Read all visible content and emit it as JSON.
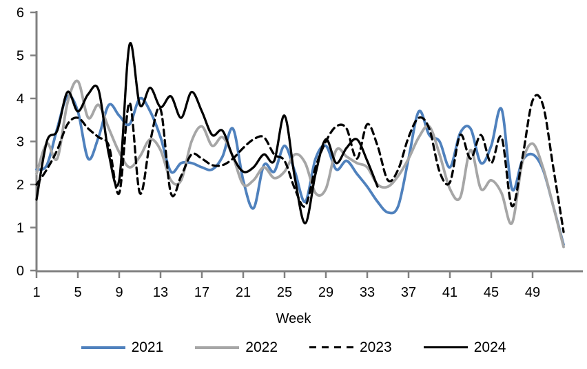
{
  "chart_data": {
    "type": "line",
    "title": "",
    "xlabel": "Week",
    "ylabel": "",
    "x_ticks": [
      1,
      5,
      9,
      13,
      17,
      21,
      25,
      29,
      33,
      37,
      41,
      45,
      49
    ],
    "y_ticks": [
      0,
      1,
      2,
      3,
      4,
      5,
      6
    ],
    "xlim": [
      1,
      53
    ],
    "ylim": [
      0,
      6
    ],
    "grid": false,
    "legend_position": "bottom",
    "axis_color": "#808080",
    "x_start_week": 1,
    "series": [
      {
        "name": "2021",
        "color": "#4f81bd",
        "style": "solid",
        "values": [
          2.35,
          2.45,
          3.3,
          4.05,
          3.7,
          2.6,
          3.1,
          3.85,
          3.6,
          3.4,
          4.0,
          3.7,
          3.1,
          2.3,
          2.5,
          2.5,
          2.4,
          2.35,
          2.65,
          3.3,
          2.1,
          1.45,
          2.45,
          2.3,
          2.9,
          2.3,
          1.6,
          2.6,
          2.9,
          2.35,
          2.55,
          2.25,
          1.95,
          1.6,
          1.35,
          1.5,
          2.6,
          3.7,
          3.15,
          3.0,
          2.4,
          3.2,
          3.3,
          2.5,
          2.9,
          3.75,
          1.9,
          2.55,
          2.7,
          2.35,
          1.5,
          0.6
        ]
      },
      {
        "name": "2022",
        "color": "#a6a6a6",
        "style": "solid",
        "values": [
          2.25,
          2.95,
          2.6,
          3.9,
          4.4,
          3.55,
          3.85,
          3.3,
          2.75,
          2.4,
          2.65,
          3.05,
          2.8,
          2.1,
          2.1,
          3.0,
          3.35,
          2.9,
          3.1,
          2.65,
          2.0,
          2.1,
          2.4,
          2.15,
          2.3,
          2.7,
          2.5,
          1.8,
          1.9,
          2.8,
          2.65,
          2.5,
          2.4,
          2.0,
          1.95,
          2.2,
          2.6,
          3.1,
          3.35,
          2.7,
          1.9,
          1.7,
          2.8,
          1.9,
          2.1,
          1.8,
          1.1,
          2.5,
          2.95,
          2.4,
          1.5,
          0.55
        ]
      },
      {
        "name": "2023",
        "color": "#000000",
        "style": "dashed",
        "values": [
          2.0,
          2.35,
          2.8,
          3.4,
          3.55,
          3.3,
          3.1,
          2.9,
          1.8,
          3.9,
          1.8,
          3.0,
          3.75,
          1.8,
          2.2,
          2.7,
          2.6,
          2.45,
          2.45,
          2.6,
          2.85,
          3.05,
          3.1,
          2.7,
          2.55,
          1.9,
          1.5,
          2.4,
          3.0,
          3.35,
          3.3,
          2.6,
          3.4,
          2.9,
          2.1,
          2.35,
          3.1,
          3.55,
          3.3,
          2.3,
          2.05,
          3.15,
          2.6,
          3.15,
          2.5,
          3.1,
          1.5,
          2.6,
          3.95,
          3.85,
          2.4,
          0.9
        ]
      },
      {
        "name": "2024",
        "color": "#000000",
        "style": "solid",
        "values": [
          1.65,
          3.0,
          3.25,
          4.15,
          3.7,
          4.1,
          4.2,
          2.7,
          2.1,
          5.25,
          3.85,
          4.25,
          3.8,
          4.05,
          3.55,
          4.15,
          3.7,
          3.15,
          3.25,
          2.65,
          2.3,
          2.4,
          2.7,
          2.55,
          3.6,
          2.15,
          1.1,
          2.25,
          3.05,
          2.5,
          2.85,
          3.05,
          2.55,
          1.95
        ]
      }
    ]
  }
}
